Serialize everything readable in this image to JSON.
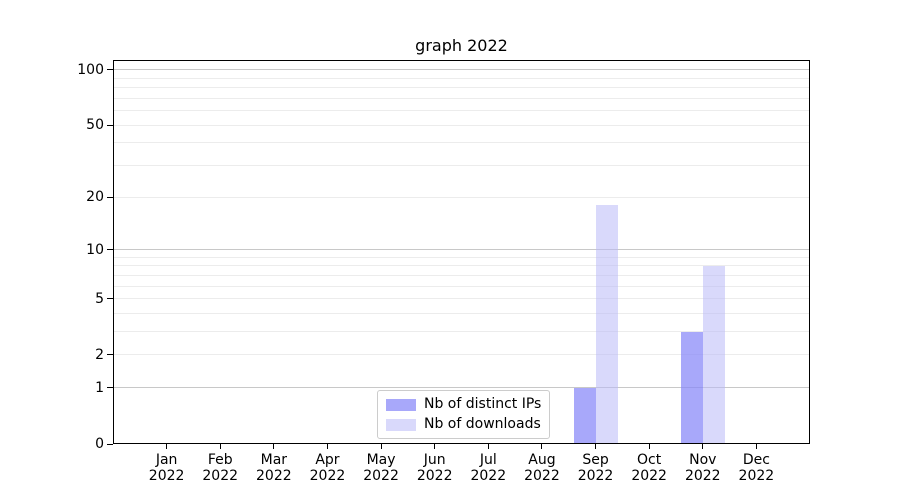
{
  "chart_data": {
    "type": "bar",
    "title": "graph 2022",
    "categories": [
      "Jan",
      "Feb",
      "Mar",
      "Apr",
      "May",
      "Jun",
      "Jul",
      "Aug",
      "Sep",
      "Oct",
      "Nov",
      "Dec"
    ],
    "xtick_year": "2022",
    "series": [
      {
        "name": "Nb of distinct IPs",
        "color": "rgba(134,134,248,0.72)",
        "values": [
          0,
          0,
          0,
          0,
          0,
          0,
          0,
          0,
          1,
          0,
          3,
          0
        ]
      },
      {
        "name": "Nb of downloads",
        "color": "rgba(186,186,248,0.55)",
        "values": [
          0,
          0,
          0,
          0,
          0,
          0,
          0,
          0,
          18,
          0,
          8,
          0
        ]
      }
    ],
    "yscale": "log1p",
    "ylim": [
      0,
      113
    ],
    "ytick_labels": [
      0,
      1,
      2,
      5,
      10,
      20,
      50,
      100
    ],
    "gridlines_major": [
      1,
      10,
      100
    ],
    "gridlines_minor": [
      2,
      3,
      4,
      5,
      6,
      7,
      8,
      9,
      20,
      30,
      40,
      50,
      60,
      70,
      80,
      90
    ],
    "legend_position": "lower center",
    "grid_on": true,
    "colors": {
      "grid_major": "#c8c8c8",
      "grid_minor": "#ececec",
      "axis": "#000000",
      "text": "#000000",
      "legend_border": "#cccccc",
      "background": "#ffffff"
    }
  }
}
